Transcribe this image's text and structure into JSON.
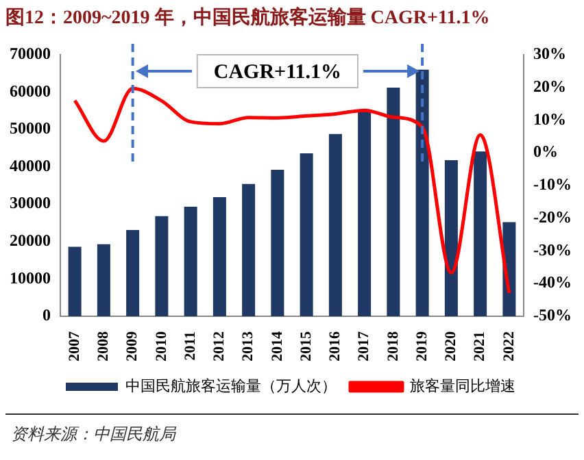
{
  "chart_data": {
    "type": "bar",
    "title": "图12：2009~2019 年，中国民航旅客运输量 CAGR+11.1%",
    "categories": [
      "2007",
      "2008",
      "2009",
      "2010",
      "2011",
      "2012",
      "2013",
      "2014",
      "2015",
      "2016",
      "2017",
      "2018",
      "2019",
      "2020",
      "2021",
      "2022"
    ],
    "series": [
      {
        "name": "中国民航旅客运输量（万人次）",
        "color": "#1f3864",
        "values": [
          18600,
          19300,
          23100,
          26800,
          29300,
          31900,
          35400,
          39200,
          43600,
          48800,
          55200,
          61200,
          66000,
          41800,
          44100,
          25200
        ]
      },
      {
        "name": "旅客量同比增速",
        "type": "line",
        "axis": "y2",
        "color": "#ff0000",
        "values": [
          16.0,
          3.6,
          19.7,
          15.9,
          9.5,
          8.9,
          10.8,
          10.7,
          11.3,
          11.9,
          13.0,
          10.9,
          7.9,
          -36.7,
          5.5,
          -42.9
        ]
      }
    ],
    "ylim": [
      0,
      70000
    ],
    "yticks": [
      0,
      10000,
      20000,
      30000,
      40000,
      50000,
      60000,
      70000
    ],
    "y2lim": [
      -50,
      30
    ],
    "y2ticks": [
      {
        "value": -50,
        "label": "-50%"
      },
      {
        "value": -40,
        "label": "-40%"
      },
      {
        "value": -30,
        "label": "-30%"
      },
      {
        "value": -20,
        "label": "-20%"
      },
      {
        "value": -10,
        "label": "-10%"
      },
      {
        "value": 0,
        "label": "0%"
      },
      {
        "value": 10,
        "label": "10%"
      },
      {
        "value": 20,
        "label": "20%"
      },
      {
        "value": 30,
        "label": "30%"
      }
    ],
    "ref_lines": [
      {
        "axis": "x",
        "value": "2009",
        "color": "#4472c4",
        "line_style": "dashed"
      },
      {
        "axis": "x",
        "value": "2019",
        "color": "#4472c4",
        "line_style": "dashed"
      }
    ],
    "annotations": [
      "CAGR+11.1%",
      "资料来源：中国民航局"
    ],
    "legend": "bottom",
    "grid": false
  }
}
